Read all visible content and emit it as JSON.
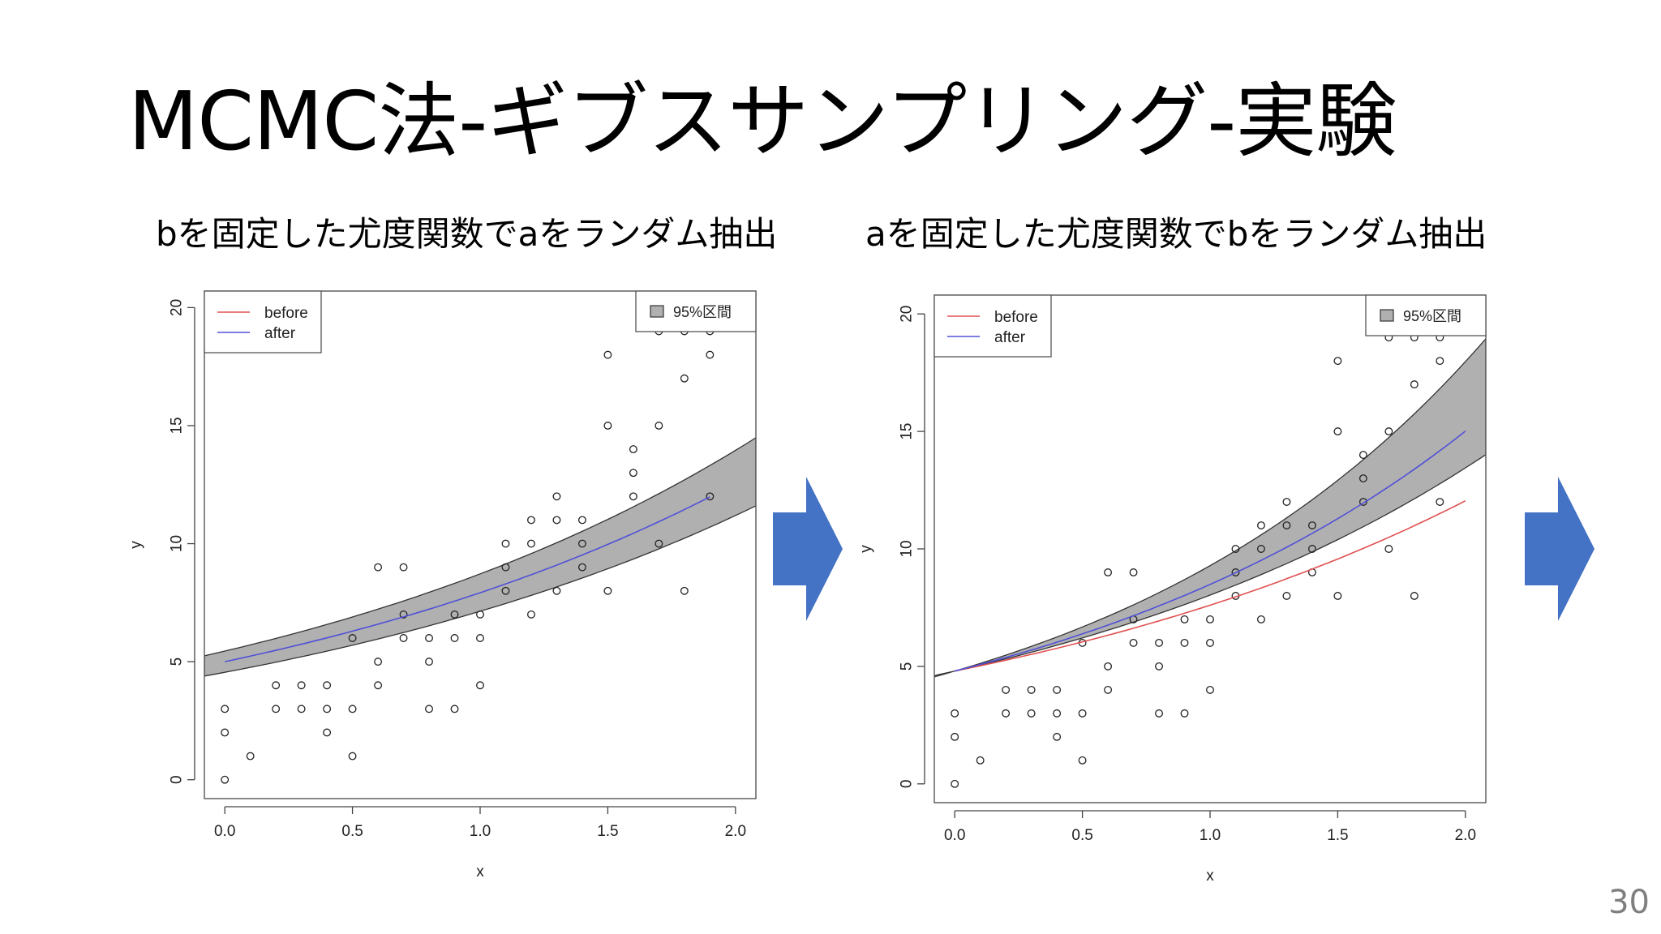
{
  "slide": {
    "title": "MCMC法-ギブスサンプリング-実験",
    "page_number": "30",
    "arrow_color": "#4472C4"
  },
  "captions": {
    "left": "bを固定した尤度関数でaをランダム抽出",
    "right": "aを固定した尤度関数でbをランダム抽出"
  },
  "chart_data": [
    {
      "type": "scatter",
      "title": "",
      "xlabel": "x",
      "ylabel": "y",
      "xlim": [
        -0.08,
        2.08
      ],
      "ylim": [
        -0.8,
        20.7
      ],
      "xticks": [
        "0.0",
        "0.5",
        "1.0",
        "1.5",
        "2.0"
      ],
      "yticks": [
        "0",
        "5",
        "10",
        "15",
        "20"
      ],
      "legend": {
        "placement": "top-left",
        "entries": [
          {
            "name": "before",
            "color": "#e05050"
          },
          {
            "name": "after",
            "color": "#5050d8"
          }
        ]
      },
      "band_legend": {
        "placement": "top-right",
        "label": "95%区間",
        "color": "#b0b0b0"
      },
      "points": [
        [
          0,
          0
        ],
        [
          0,
          2
        ],
        [
          0,
          3
        ],
        [
          0.1,
          1
        ],
        [
          0.2,
          3
        ],
        [
          0.2,
          4
        ],
        [
          0.3,
          3
        ],
        [
          0.3,
          4
        ],
        [
          0.4,
          2
        ],
        [
          0.4,
          3
        ],
        [
          0.4,
          4
        ],
        [
          0.5,
          1
        ],
        [
          0.5,
          3
        ],
        [
          0.5,
          6
        ],
        [
          0.6,
          4
        ],
        [
          0.6,
          5
        ],
        [
          0.6,
          9
        ],
        [
          0.7,
          6
        ],
        [
          0.7,
          7
        ],
        [
          0.7,
          9
        ],
        [
          0.8,
          3
        ],
        [
          0.8,
          5
        ],
        [
          0.8,
          6
        ],
        [
          0.9,
          3
        ],
        [
          0.9,
          6
        ],
        [
          0.9,
          7
        ],
        [
          1.0,
          4
        ],
        [
          1.0,
          6
        ],
        [
          1.0,
          7
        ],
        [
          1.1,
          8
        ],
        [
          1.1,
          9
        ],
        [
          1.1,
          10
        ],
        [
          1.2,
          7
        ],
        [
          1.2,
          10
        ],
        [
          1.2,
          11
        ],
        [
          1.3,
          8
        ],
        [
          1.3,
          11
        ],
        [
          1.3,
          12
        ],
        [
          1.4,
          9
        ],
        [
          1.4,
          10
        ],
        [
          1.4,
          11
        ],
        [
          1.5,
          8
        ],
        [
          1.5,
          15
        ],
        [
          1.5,
          18
        ],
        [
          1.6,
          12
        ],
        [
          1.6,
          13
        ],
        [
          1.6,
          14
        ],
        [
          1.7,
          10
        ],
        [
          1.7,
          15
        ],
        [
          1.7,
          19
        ],
        [
          1.8,
          8
        ],
        [
          1.8,
          17
        ],
        [
          1.8,
          19
        ],
        [
          1.9,
          12
        ],
        [
          1.9,
          18
        ],
        [
          1.9,
          19
        ]
      ],
      "series": [
        {
          "name": "after",
          "model": "exponential",
          "a": 5.0,
          "b": 0.46,
          "x_range": [
            0,
            1.9
          ]
        }
      ],
      "band": {
        "model": "exponential",
        "lower": {
          "a": 4.55,
          "b": 0.45
        },
        "upper": {
          "a": 5.45,
          "b": 0.47
        }
      }
    },
    {
      "type": "scatter",
      "title": "",
      "xlabel": "x",
      "ylabel": "y",
      "xlim": [
        -0.08,
        2.08
      ],
      "ylim": [
        -0.8,
        20.8
      ],
      "xticks": [
        "0.0",
        "0.5",
        "1.0",
        "1.5",
        "2.0"
      ],
      "yticks": [
        "0",
        "5",
        "10",
        "15",
        "20"
      ],
      "legend": {
        "placement": "top-left",
        "entries": [
          {
            "name": "before",
            "color": "#e05050"
          },
          {
            "name": "after",
            "color": "#5050d8"
          }
        ]
      },
      "band_legend": {
        "placement": "top-right",
        "label": "95%区間",
        "color": "#b0b0b0"
      },
      "points": [
        [
          0,
          0
        ],
        [
          0,
          2
        ],
        [
          0,
          3
        ],
        [
          0.1,
          1
        ],
        [
          0.2,
          3
        ],
        [
          0.2,
          4
        ],
        [
          0.3,
          3
        ],
        [
          0.3,
          4
        ],
        [
          0.4,
          2
        ],
        [
          0.4,
          3
        ],
        [
          0.4,
          4
        ],
        [
          0.5,
          1
        ],
        [
          0.5,
          3
        ],
        [
          0.5,
          6
        ],
        [
          0.6,
          4
        ],
        [
          0.6,
          5
        ],
        [
          0.6,
          9
        ],
        [
          0.7,
          6
        ],
        [
          0.7,
          7
        ],
        [
          0.7,
          9
        ],
        [
          0.8,
          3
        ],
        [
          0.8,
          5
        ],
        [
          0.8,
          6
        ],
        [
          0.9,
          3
        ],
        [
          0.9,
          6
        ],
        [
          0.9,
          7
        ],
        [
          1.0,
          4
        ],
        [
          1.0,
          6
        ],
        [
          1.0,
          7
        ],
        [
          1.1,
          8
        ],
        [
          1.1,
          9
        ],
        [
          1.1,
          10
        ],
        [
          1.2,
          7
        ],
        [
          1.2,
          10
        ],
        [
          1.2,
          11
        ],
        [
          1.3,
          8
        ],
        [
          1.3,
          11
        ],
        [
          1.3,
          12
        ],
        [
          1.4,
          9
        ],
        [
          1.4,
          10
        ],
        [
          1.4,
          11
        ],
        [
          1.5,
          8
        ],
        [
          1.5,
          15
        ],
        [
          1.5,
          18
        ],
        [
          1.6,
          12
        ],
        [
          1.6,
          13
        ],
        [
          1.6,
          14
        ],
        [
          1.7,
          10
        ],
        [
          1.7,
          15
        ],
        [
          1.7,
          19
        ],
        [
          1.8,
          8
        ],
        [
          1.8,
          17
        ],
        [
          1.8,
          19
        ],
        [
          1.9,
          12
        ],
        [
          1.9,
          18
        ],
        [
          1.9,
          19
        ]
      ],
      "series": [
        {
          "name": "before",
          "model": "exponential",
          "a": 4.8,
          "b": 0.46,
          "x_range": [
            0,
            2.0
          ]
        },
        {
          "name": "after",
          "model": "exponential",
          "a": 4.8,
          "b": 0.57,
          "x_range": [
            0,
            2.0
          ]
        }
      ],
      "band": {
        "model": "exponential",
        "lower": {
          "a": 4.8,
          "b": 0.515
        },
        "upper": {
          "a": 4.8,
          "b": 0.66
        }
      }
    }
  ]
}
